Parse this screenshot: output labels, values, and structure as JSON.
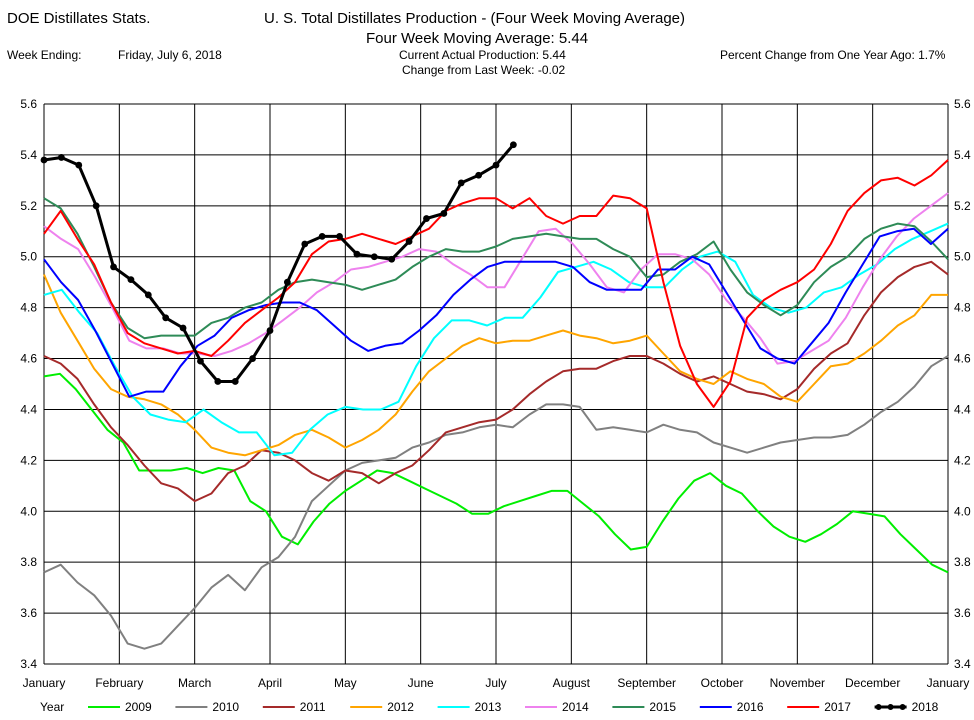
{
  "header": {
    "left_title": "DOE Distillates Stats.",
    "main_title": "U. S. Total Distillates Production - (Four Week Moving Average)",
    "subtitle": "Four Week Moving Average:   5.44",
    "week_label": "Week Ending:",
    "week_value": "Friday, July 6, 2018",
    "current_actual": "Current Actual Production:  5.44",
    "change_week": "Change from Last Week: -0.02",
    "pct_change": "Percent Change from One Year Ago:  1.7%"
  },
  "chart_data": {
    "type": "line",
    "y_ticks": [
      "3.4",
      "3.6",
      "3.8",
      "4.0",
      "4.2",
      "4.4",
      "4.6",
      "4.8",
      "5.0",
      "5.2",
      "5.4",
      "5.6"
    ],
    "ylim": [
      3.4,
      5.6
    ],
    "xlim": [
      1,
      53
    ],
    "x_month_labels": [
      "January",
      "February",
      "March",
      "April",
      "May",
      "June",
      "July",
      "August",
      "September",
      "October",
      "November",
      "December",
      "January"
    ],
    "grid": true,
    "legend_label": "Year",
    "legend_position": "bottom",
    "series": [
      {
        "name": "2009",
        "color": "#00ee00",
        "width": 2,
        "markers": false,
        "values": [
          4.53,
          4.54,
          4.48,
          4.4,
          4.32,
          4.27,
          4.16,
          4.16,
          4.16,
          4.17,
          4.15,
          4.17,
          4.16,
          4.04,
          4.0,
          3.9,
          3.87,
          3.96,
          4.03,
          4.08,
          4.12,
          4.16,
          4.15,
          4.12,
          4.09,
          4.06,
          4.03,
          3.99,
          3.99,
          4.02,
          4.04,
          4.06,
          4.08,
          4.08,
          4.03,
          3.98,
          3.91,
          3.85,
          3.86,
          3.96,
          4.05,
          4.12,
          4.15,
          4.1,
          4.07,
          4.0,
          3.94,
          3.9,
          3.88,
          3.91,
          3.95,
          4.0,
          3.99,
          3.98,
          3.91,
          3.85,
          3.79,
          3.76
        ]
      },
      {
        "name": "2010",
        "color": "#808080",
        "width": 2,
        "markers": false,
        "values": [
          3.76,
          3.79,
          3.72,
          3.67,
          3.59,
          3.48,
          3.46,
          3.48,
          3.55,
          3.62,
          3.7,
          3.75,
          3.69,
          3.78,
          3.82,
          3.9,
          4.04,
          4.1,
          4.16,
          4.19,
          4.2,
          4.21,
          4.25,
          4.27,
          4.3,
          4.31,
          4.33,
          4.34,
          4.33,
          4.38,
          4.42,
          4.42,
          4.41,
          4.32,
          4.33,
          4.32,
          4.31,
          4.34,
          4.32,
          4.31,
          4.27,
          4.25,
          4.23,
          4.25,
          4.27,
          4.28,
          4.29,
          4.29,
          4.3,
          4.34,
          4.39,
          4.43,
          4.49,
          4.57,
          4.61
        ]
      },
      {
        "name": "2011",
        "color": "#a52a2a",
        "width": 2,
        "markers": false,
        "values": [
          4.61,
          4.58,
          4.52,
          4.42,
          4.33,
          4.26,
          4.18,
          4.11,
          4.09,
          4.04,
          4.07,
          4.15,
          4.18,
          4.24,
          4.23,
          4.2,
          4.15,
          4.12,
          4.16,
          4.15,
          4.11,
          4.15,
          4.18,
          4.24,
          4.31,
          4.33,
          4.35,
          4.36,
          4.4,
          4.46,
          4.51,
          4.55,
          4.56,
          4.56,
          4.59,
          4.61,
          4.61,
          4.58,
          4.54,
          4.51,
          4.53,
          4.5,
          4.47,
          4.46,
          4.44,
          4.48,
          4.56,
          4.62,
          4.66,
          4.77,
          4.86,
          4.92,
          4.96,
          4.98,
          4.93
        ]
      },
      {
        "name": "2012",
        "color": "#ffa500",
        "width": 2,
        "markers": false,
        "values": [
          4.93,
          4.78,
          4.67,
          4.56,
          4.48,
          4.45,
          4.44,
          4.42,
          4.38,
          4.32,
          4.25,
          4.23,
          4.22,
          4.24,
          4.26,
          4.3,
          4.32,
          4.29,
          4.25,
          4.28,
          4.32,
          4.38,
          4.47,
          4.55,
          4.6,
          4.65,
          4.68,
          4.66,
          4.67,
          4.67,
          4.69,
          4.71,
          4.69,
          4.68,
          4.66,
          4.67,
          4.69,
          4.62,
          4.55,
          4.52,
          4.5,
          4.55,
          4.52,
          4.5,
          4.45,
          4.43,
          4.5,
          4.57,
          4.58,
          4.62,
          4.67,
          4.73,
          4.77,
          4.85,
          4.85
        ]
      },
      {
        "name": "2013",
        "color": "#00ffff",
        "width": 2,
        "markers": false,
        "values": [
          4.85,
          4.87,
          4.78,
          4.7,
          4.57,
          4.45,
          4.38,
          4.36,
          4.35,
          4.4,
          4.35,
          4.31,
          4.31,
          4.22,
          4.23,
          4.32,
          4.38,
          4.41,
          4.4,
          4.4,
          4.43,
          4.57,
          4.68,
          4.75,
          4.75,
          4.73,
          4.76,
          4.76,
          4.84,
          4.94,
          4.96,
          4.98,
          4.95,
          4.9,
          4.88,
          4.88,
          4.95,
          5.0,
          5.02,
          4.98,
          4.85,
          4.8,
          4.78,
          4.8,
          4.86,
          4.88,
          4.93,
          4.97,
          5.03,
          5.07,
          5.1,
          5.13
        ]
      },
      {
        "name": "2014",
        "color": "#ee82ee",
        "width": 2,
        "markers": false,
        "values": [
          5.12,
          5.07,
          5.03,
          4.92,
          4.8,
          4.67,
          4.64,
          4.64,
          4.62,
          4.62,
          4.61,
          4.63,
          4.66,
          4.7,
          4.75,
          4.8,
          4.86,
          4.9,
          4.95,
          4.96,
          4.98,
          5.0,
          5.03,
          5.02,
          4.97,
          4.93,
          4.88,
          4.88,
          4.99,
          5.1,
          5.11,
          5.05,
          4.97,
          4.88,
          4.86,
          4.95,
          5.01,
          5.01,
          4.99,
          4.93,
          4.83,
          4.76,
          4.68,
          4.58,
          4.59,
          4.63,
          4.67,
          4.76,
          4.88,
          4.99,
          5.08,
          5.15,
          5.2,
          5.25
        ]
      },
      {
        "name": "2015",
        "color": "#2e8b57",
        "width": 2,
        "markers": false,
        "values": [
          5.23,
          5.19,
          5.09,
          4.96,
          4.82,
          4.72,
          4.68,
          4.69,
          4.69,
          4.69,
          4.74,
          4.76,
          4.8,
          4.82,
          4.87,
          4.9,
          4.91,
          4.9,
          4.89,
          4.87,
          4.89,
          4.91,
          4.96,
          5.0,
          5.03,
          5.02,
          5.02,
          5.04,
          5.07,
          5.08,
          5.09,
          5.08,
          5.07,
          5.07,
          5.03,
          5.0,
          4.92,
          4.93,
          4.98,
          5.01,
          5.06,
          4.95,
          4.86,
          4.81,
          4.77,
          4.81,
          4.9,
          4.96,
          5.0,
          5.07,
          5.11,
          5.13,
          5.12,
          5.06,
          4.99
        ]
      },
      {
        "name": "2016",
        "color": "#0000ff",
        "width": 2,
        "markers": false,
        "values": [
          4.99,
          4.9,
          4.83,
          4.71,
          4.58,
          4.45,
          4.47,
          4.47,
          4.57,
          4.65,
          4.69,
          4.76,
          4.79,
          4.81,
          4.82,
          4.82,
          4.79,
          4.73,
          4.67,
          4.63,
          4.65,
          4.66,
          4.71,
          4.77,
          4.85,
          4.91,
          4.96,
          4.98,
          4.98,
          4.98,
          4.98,
          4.96,
          4.9,
          4.87,
          4.87,
          4.87,
          4.95,
          4.95,
          5.0,
          4.97,
          4.86,
          4.75,
          4.64,
          4.6,
          4.58,
          4.66,
          4.74,
          4.86,
          4.97,
          5.08,
          5.1,
          5.11,
          5.05,
          5.11
        ]
      },
      {
        "name": "2017",
        "color": "#ff0000",
        "width": 2,
        "markers": false,
        "values": [
          5.09,
          5.18,
          5.07,
          4.97,
          4.82,
          4.7,
          4.66,
          4.64,
          4.62,
          4.63,
          4.61,
          4.67,
          4.74,
          4.79,
          4.84,
          4.9,
          5.01,
          5.06,
          5.07,
          5.09,
          5.07,
          5.05,
          5.08,
          5.11,
          5.18,
          5.21,
          5.23,
          5.23,
          5.19,
          5.23,
          5.16,
          5.13,
          5.16,
          5.16,
          5.24,
          5.23,
          5.19,
          4.9,
          4.65,
          4.5,
          4.41,
          4.51,
          4.76,
          4.83,
          4.87,
          4.9,
          4.95,
          5.05,
          5.18,
          5.25,
          5.3,
          5.31,
          5.28,
          5.32,
          5.38
        ]
      },
      {
        "name": "2018",
        "color": "#000000",
        "width": 3,
        "markers": true,
        "values": [
          5.38,
          5.39,
          5.36,
          5.2,
          4.96,
          4.91,
          4.85,
          4.76,
          4.72,
          4.59,
          4.51,
          4.51,
          4.6,
          4.71,
          4.9,
          5.05,
          5.08,
          5.08,
          5.01,
          5.0,
          4.99,
          5.06,
          5.15,
          5.17,
          5.29,
          5.32,
          5.36,
          5.44
        ]
      }
    ]
  }
}
